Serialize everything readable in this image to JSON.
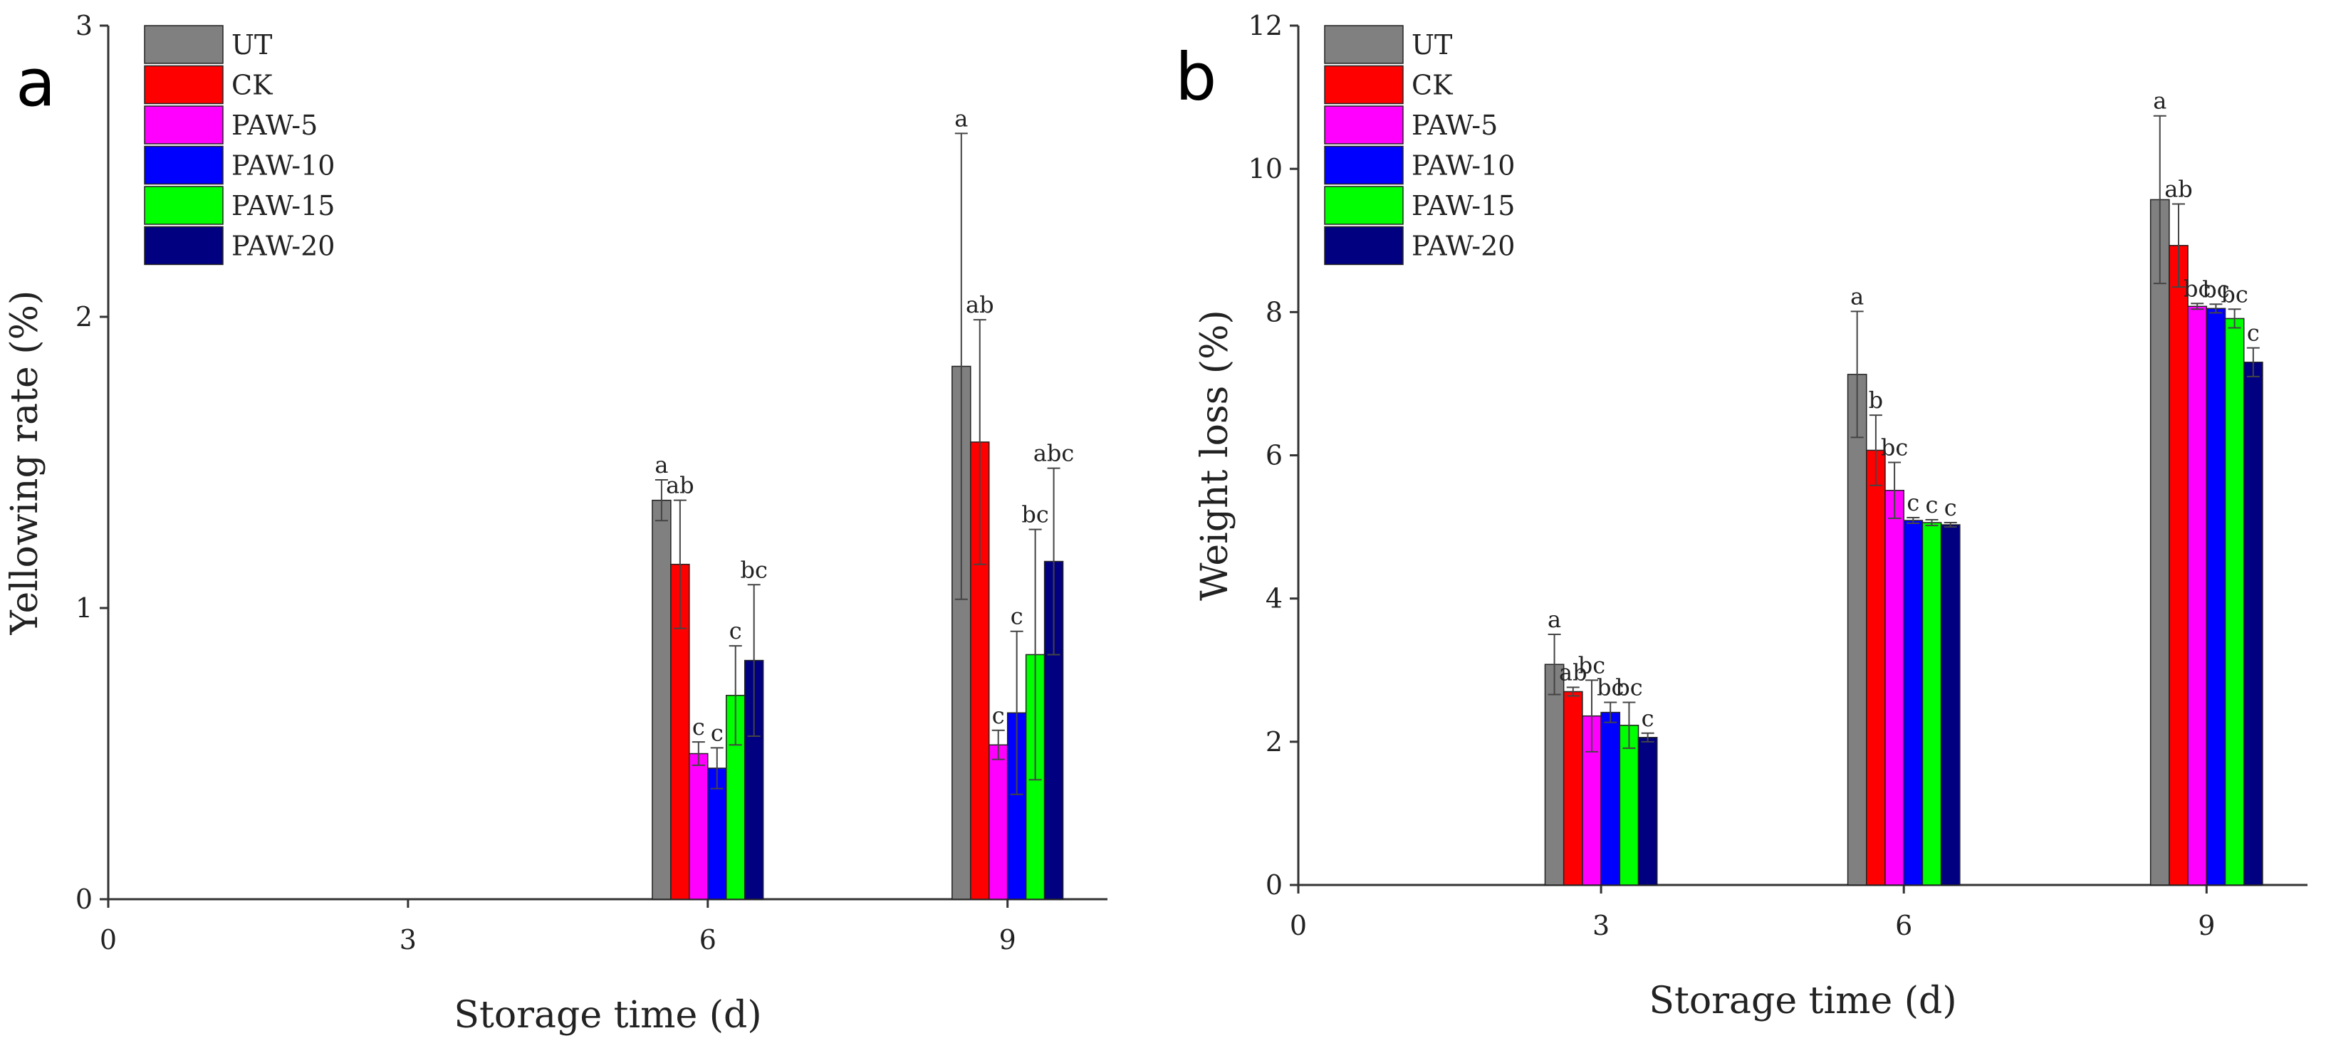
{
  "colors": {
    "UT": "#808080",
    "CK": "#ff0000",
    "PAW-5": "#ff00ff",
    "PAW-10": "#0000ff",
    "PAW-15": "#00ff00",
    "PAW-20": "#000080"
  },
  "chart_data": [
    {
      "type": "bar",
      "panel_label": "a",
      "xlabel": "Storage time (d)",
      "ylabel": "Yellowing rate (%)",
      "x_ticks": [
        0,
        3,
        6,
        9
      ],
      "categories": [
        6,
        9
      ],
      "xlim": [
        0,
        10
      ],
      "ylim": [
        0,
        3
      ],
      "y_ticks": [
        0,
        1,
        2,
        3
      ],
      "legend_position": "top-left",
      "series": [
        {
          "name": "UT",
          "values": [
            1.37,
            1.83
          ],
          "errors": [
            0.07,
            0.8
          ],
          "labels": [
            "a",
            "a"
          ]
        },
        {
          "name": "CK",
          "values": [
            1.15,
            1.57
          ],
          "errors": [
            0.22,
            0.42
          ],
          "labels": [
            "ab",
            "ab"
          ]
        },
        {
          "name": "PAW-5",
          "values": [
            0.5,
            0.53
          ],
          "errors": [
            0.04,
            0.05
          ],
          "labels": [
            "c",
            "c"
          ]
        },
        {
          "name": "PAW-10",
          "values": [
            0.45,
            0.64
          ],
          "errors": [
            0.07,
            0.28
          ],
          "labels": [
            "c",
            "c"
          ]
        },
        {
          "name": "PAW-15",
          "values": [
            0.7,
            0.84
          ],
          "errors": [
            0.17,
            0.43
          ],
          "labels": [
            "c",
            "bc"
          ]
        },
        {
          "name": "PAW-20",
          "values": [
            0.82,
            1.16
          ],
          "errors": [
            0.26,
            0.32
          ],
          "labels": [
            "bc",
            "abc"
          ]
        }
      ]
    },
    {
      "type": "bar",
      "panel_label": "b",
      "xlabel": "Storage time (d)",
      "ylabel": "Weight loss (%)",
      "x_ticks": [
        0,
        3,
        6,
        9
      ],
      "categories": [
        3,
        6,
        9
      ],
      "xlim": [
        0,
        10
      ],
      "ylim": [
        0,
        12
      ],
      "y_ticks": [
        0,
        2,
        4,
        6,
        8,
        10,
        12
      ],
      "legend_position": "top-left",
      "series": [
        {
          "name": "UT",
          "values": [
            3.08,
            7.13,
            9.57
          ],
          "errors": [
            0.42,
            0.88,
            1.17
          ],
          "labels": [
            "a",
            "a",
            "a"
          ]
        },
        {
          "name": "CK",
          "values": [
            2.7,
            6.07,
            8.93
          ],
          "errors": [
            0.06,
            0.49,
            0.58
          ],
          "labels": [
            "ab",
            "b",
            "ab"
          ]
        },
        {
          "name": "PAW-5",
          "values": [
            2.36,
            5.51,
            8.08
          ],
          "errors": [
            0.5,
            0.39,
            0.04
          ],
          "labels": [
            "bc",
            "bc",
            "bc"
          ]
        },
        {
          "name": "PAW-10",
          "values": [
            2.41,
            5.09,
            8.05
          ],
          "errors": [
            0.14,
            0.04,
            0.06
          ],
          "labels": [
            "bc",
            "c",
            "bc"
          ]
        },
        {
          "name": "PAW-15",
          "values": [
            2.23,
            5.06,
            7.91
          ],
          "errors": [
            0.32,
            0.04,
            0.13
          ],
          "labels": [
            "bc",
            "c",
            "bc"
          ]
        },
        {
          "name": "PAW-20",
          "values": [
            2.06,
            5.03,
            7.3
          ],
          "errors": [
            0.06,
            0.03,
            0.2
          ],
          "labels": [
            "c",
            "c",
            "c"
          ]
        }
      ]
    }
  ]
}
